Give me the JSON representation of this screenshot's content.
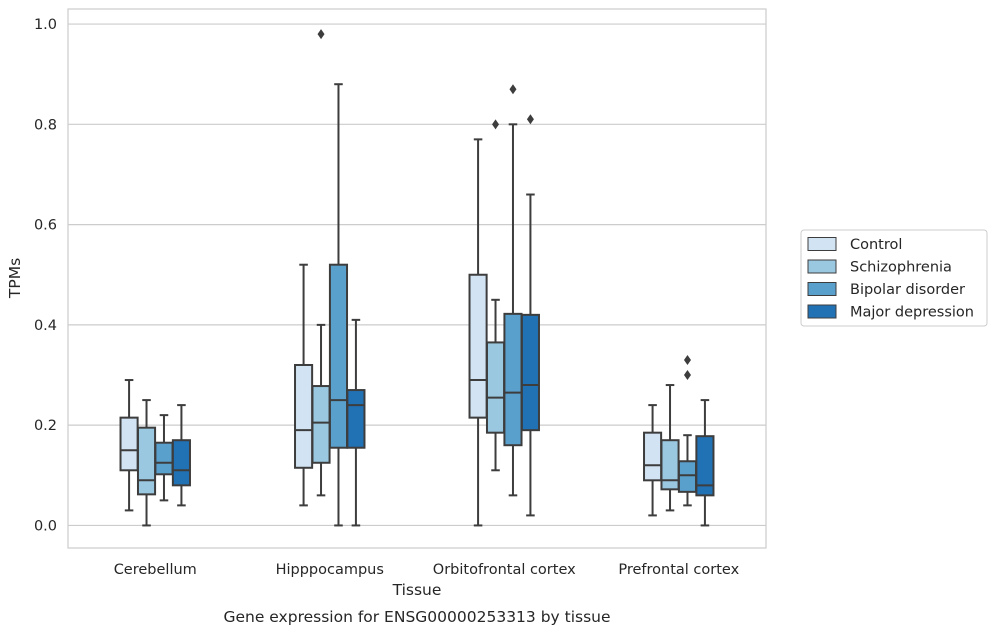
{
  "caption": "Gene expression for ENSG00000253313 by tissue",
  "chart_data": {
    "type": "box",
    "title": "",
    "xlabel": "Tissue",
    "ylabel": "TPMs",
    "ylim": [
      -0.045,
      1.03
    ],
    "yticks": [
      "0.0",
      "0.2",
      "0.4",
      "0.6",
      "0.8",
      "1.0"
    ],
    "grid": "horizontal",
    "legend_position": "right",
    "categories": [
      "Cerebellum",
      "Hipppocampus",
      "Orbitofrontal cortex",
      "Prefrontal cortex"
    ],
    "series": [
      {
        "name": "Control",
        "color": "#d2e3f3",
        "boxes": [
          {
            "whisker_low": 0.03,
            "q1": 0.11,
            "median": 0.15,
            "q3": 0.215,
            "whisker_high": 0.29,
            "outliers": []
          },
          {
            "whisker_low": 0.04,
            "q1": 0.115,
            "median": 0.19,
            "q3": 0.32,
            "whisker_high": 0.52,
            "outliers": []
          },
          {
            "whisker_low": 0.0,
            "q1": 0.215,
            "median": 0.29,
            "q3": 0.5,
            "whisker_high": 0.77,
            "outliers": []
          },
          {
            "whisker_low": 0.02,
            "q1": 0.09,
            "median": 0.12,
            "q3": 0.185,
            "whisker_high": 0.24,
            "outliers": []
          }
        ]
      },
      {
        "name": "Schizophrenia",
        "color": "#9ac8e0",
        "boxes": [
          {
            "whisker_low": 0.0,
            "q1": 0.062,
            "median": 0.09,
            "q3": 0.195,
            "whisker_high": 0.25,
            "outliers": []
          },
          {
            "whisker_low": 0.06,
            "q1": 0.125,
            "median": 0.205,
            "q3": 0.278,
            "whisker_high": 0.4,
            "outliers": [
              0.98
            ]
          },
          {
            "whisker_low": 0.11,
            "q1": 0.185,
            "median": 0.255,
            "q3": 0.365,
            "whisker_high": 0.45,
            "outliers": [
              0.8
            ]
          },
          {
            "whisker_low": 0.03,
            "q1": 0.072,
            "median": 0.09,
            "q3": 0.17,
            "whisker_high": 0.28,
            "outliers": []
          }
        ]
      },
      {
        "name": "Bipolar disorder",
        "color": "#5aa0cd",
        "boxes": [
          {
            "whisker_low": 0.05,
            "q1": 0.102,
            "median": 0.125,
            "q3": 0.165,
            "whisker_high": 0.22,
            "outliers": []
          },
          {
            "whisker_low": 0.0,
            "q1": 0.155,
            "median": 0.25,
            "q3": 0.52,
            "whisker_high": 0.88,
            "outliers": []
          },
          {
            "whisker_low": 0.06,
            "q1": 0.16,
            "median": 0.265,
            "q3": 0.422,
            "whisker_high": 0.8,
            "outliers": [
              0.87
            ]
          },
          {
            "whisker_low": 0.04,
            "q1": 0.067,
            "median": 0.1,
            "q3": 0.128,
            "whisker_high": 0.18,
            "outliers": [
              0.3,
              0.33
            ]
          }
        ]
      },
      {
        "name": "Major depression",
        "color": "#2171b5",
        "boxes": [
          {
            "whisker_low": 0.04,
            "q1": 0.08,
            "median": 0.11,
            "q3": 0.17,
            "whisker_high": 0.24,
            "outliers": []
          },
          {
            "whisker_low": 0.0,
            "q1": 0.155,
            "median": 0.24,
            "q3": 0.27,
            "whisker_high": 0.41,
            "outliers": []
          },
          {
            "whisker_low": 0.02,
            "q1": 0.19,
            "median": 0.28,
            "q3": 0.42,
            "whisker_high": 0.66,
            "outliers": [
              0.81
            ]
          },
          {
            "whisker_low": 0.0,
            "q1": 0.06,
            "median": 0.08,
            "q3": 0.178,
            "whisker_high": 0.25,
            "outliers": []
          }
        ]
      }
    ]
  }
}
